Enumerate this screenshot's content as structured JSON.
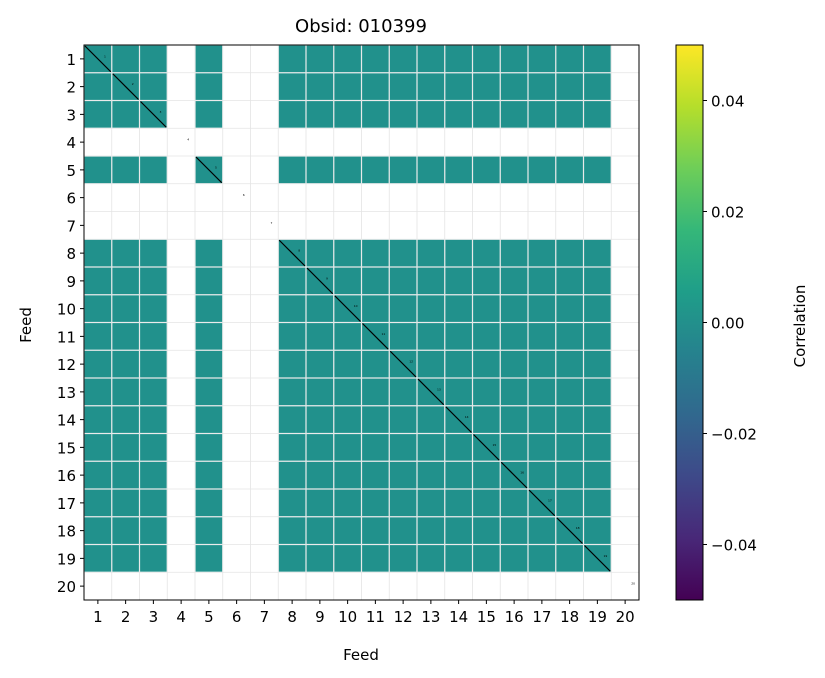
{
  "chart_data": {
    "type": "heatmap",
    "title": "Obsid: 010399",
    "xlabel": "Feed",
    "ylabel": "Feed",
    "categories": [
      "1",
      "2",
      "3",
      "4",
      "5",
      "6",
      "7",
      "8",
      "9",
      "10",
      "11",
      "12",
      "13",
      "14",
      "15",
      "16",
      "17",
      "18",
      "19",
      "20"
    ],
    "active_feeds": [
      1,
      2,
      3,
      5,
      8,
      9,
      10,
      11,
      12,
      13,
      14,
      15,
      16,
      17,
      18,
      19
    ],
    "inactive_feeds": [
      4,
      6,
      7,
      20
    ],
    "correlation_value_active_pairs": 0.0,
    "grid": true,
    "colorbar": {
      "label": "Correlation",
      "range": [
        -0.05,
        0.05
      ],
      "ticks": [
        -0.04,
        -0.02,
        0.0,
        0.02,
        0.04
      ],
      "tick_labels": [
        "−0.04",
        "−0.02",
        "0.00",
        "0.02",
        "0.04"
      ],
      "colormap_stops": [
        "#440154",
        "#482878",
        "#3e4989",
        "#31688e",
        "#26828e",
        "#1f9e89",
        "#35b779",
        "#6ece58",
        "#b5de2b",
        "#fde725"
      ]
    },
    "cell_color": "#21918c"
  }
}
